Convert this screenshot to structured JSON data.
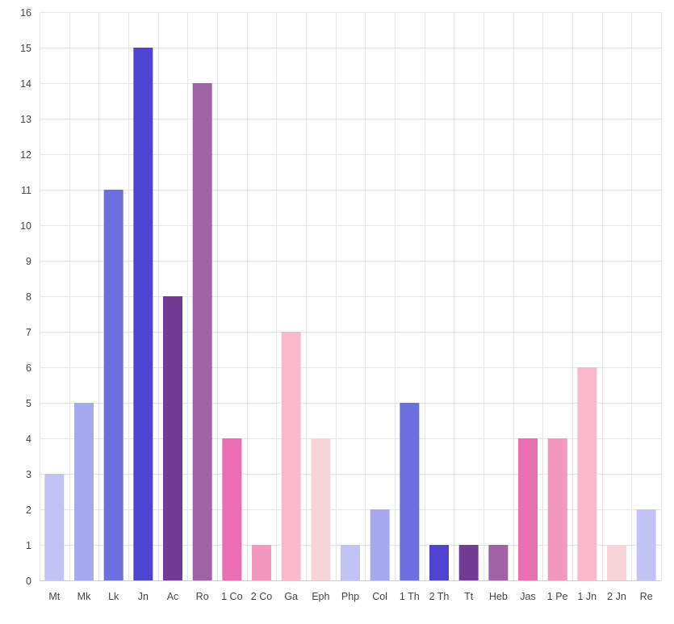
{
  "chart_data": {
    "type": "bar",
    "title": "",
    "xlabel": "",
    "ylabel": "",
    "ylim": [
      0,
      16
    ],
    "yticks": [
      0,
      1,
      2,
      3,
      4,
      5,
      6,
      7,
      8,
      9,
      10,
      11,
      12,
      13,
      14,
      15,
      16
    ],
    "grid": true,
    "legend": "none",
    "categories": [
      "Mt",
      "Mk",
      "Lk",
      "Jn",
      "Ac",
      "Ro",
      "1 Co",
      "2 Co",
      "Ga",
      "Eph",
      "Php",
      "Col",
      "1 Th",
      "2 Th",
      "Tt",
      "Heb",
      "Jas",
      "1 Pe",
      "1 Jn",
      "2 Jn",
      "Re"
    ],
    "values": [
      3,
      5,
      11,
      15,
      8,
      14,
      4,
      1,
      7,
      4,
      1,
      2,
      5,
      1,
      1,
      1,
      4,
      4,
      6,
      1,
      2
    ],
    "colors": [
      "#c0c3f4",
      "#a7a9ee",
      "#6c6fe0",
      "#4f44d2",
      "#713c93",
      "#a062a4",
      "#ea6fb2",
      "#f397bd",
      "#f9b9ca",
      "#f7d4da",
      "#c0c3f4",
      "#a7a9ee",
      "#6c6fe0",
      "#4f44d2",
      "#713c93",
      "#a062a4",
      "#ea6fb2",
      "#f397bd",
      "#f9b9ca",
      "#f7d4da",
      "#c0c3f4"
    ]
  }
}
